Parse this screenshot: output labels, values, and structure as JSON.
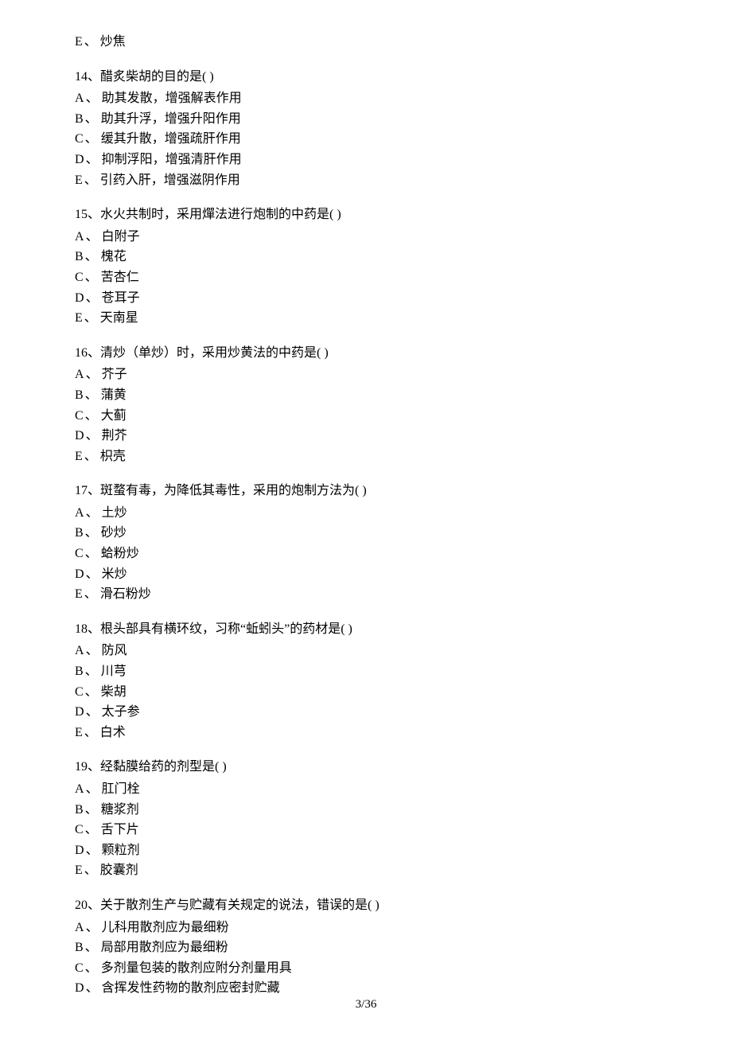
{
  "orphanOption": {
    "letter": "E",
    "sep": "、",
    "text": "炒焦"
  },
  "questions": [
    {
      "num": "14",
      "sep": "、",
      "stem": "醋炙柴胡的目的是( )",
      "options": [
        {
          "letter": "A",
          "sep": "、",
          "text": "助其发散，增强解表作用"
        },
        {
          "letter": "B",
          "sep": "、",
          "text": "助其升浮，增强升阳作用"
        },
        {
          "letter": "C",
          "sep": "、",
          "text": "缓其升散，增强疏肝作用"
        },
        {
          "letter": "D",
          "sep": "、",
          "text": "抑制浮阳，增强清肝作用"
        },
        {
          "letter": "E",
          "sep": "、",
          "text": "引药入肝，增强滋阴作用"
        }
      ]
    },
    {
      "num": "15",
      "sep": "、",
      "stem": "水火共制时，采用燀法进行炮制的中药是( )",
      "options": [
        {
          "letter": "A",
          "sep": "、",
          "text": "白附子"
        },
        {
          "letter": "B",
          "sep": "、",
          "text": "槐花"
        },
        {
          "letter": "C",
          "sep": "、",
          "text": "苦杏仁"
        },
        {
          "letter": "D",
          "sep": "、",
          "text": "苍耳子"
        },
        {
          "letter": "E",
          "sep": "、",
          "text": "天南星"
        }
      ]
    },
    {
      "num": "16",
      "sep": "、",
      "stem": "清炒（单炒）时，采用炒黄法的中药是( )",
      "options": [
        {
          "letter": "A",
          "sep": "、",
          "text": "芥子"
        },
        {
          "letter": "B",
          "sep": "、",
          "text": "蒲黄"
        },
        {
          "letter": "C",
          "sep": "、",
          "text": "大蓟"
        },
        {
          "letter": "D",
          "sep": "、",
          "text": "荆芥"
        },
        {
          "letter": "E",
          "sep": "、",
          "text": "枳壳"
        }
      ]
    },
    {
      "num": "17",
      "sep": "、",
      "stem": "斑蝥有毒，为降低其毒性，采用的炮制方法为( )",
      "options": [
        {
          "letter": "A",
          "sep": "、",
          "text": "土炒"
        },
        {
          "letter": "B",
          "sep": "、",
          "text": "砂炒"
        },
        {
          "letter": "C",
          "sep": "、",
          "text": "蛤粉炒"
        },
        {
          "letter": "D",
          "sep": "、",
          "text": "米炒"
        },
        {
          "letter": "E",
          "sep": "、",
          "text": "滑石粉炒"
        }
      ]
    },
    {
      "num": "18",
      "sep": "、",
      "stem": "根头部具有横环纹，习称“蚯蚓头”的药材是( )",
      "options": [
        {
          "letter": "A",
          "sep": "、",
          "text": "防风"
        },
        {
          "letter": "B",
          "sep": "、",
          "text": "川芎"
        },
        {
          "letter": "C",
          "sep": "、",
          "text": "柴胡"
        },
        {
          "letter": "D",
          "sep": "、",
          "text": "太子参"
        },
        {
          "letter": "E",
          "sep": "、",
          "text": "白术"
        }
      ]
    },
    {
      "num": "19",
      "sep": "、",
      "stem": "经黏膜给药的剂型是( )",
      "options": [
        {
          "letter": "A",
          "sep": "、",
          "text": "肛门栓"
        },
        {
          "letter": "B",
          "sep": "、",
          "text": "糖浆剂"
        },
        {
          "letter": "C",
          "sep": "、",
          "text": "舌下片"
        },
        {
          "letter": "D",
          "sep": "、",
          "text": "颗粒剂"
        },
        {
          "letter": "E",
          "sep": "、",
          "text": "胶囊剂"
        }
      ]
    },
    {
      "num": "20",
      "sep": "、",
      "stem": "关于散剂生产与贮藏有关规定的说法，错误的是( )",
      "options": [
        {
          "letter": "A",
          "sep": "、",
          "text": "儿科用散剂应为最细粉"
        },
        {
          "letter": "B",
          "sep": "、",
          "text": "局部用散剂应为最细粉"
        },
        {
          "letter": "C",
          "sep": "、",
          "text": "多剂量包装的散剂应附分剂量用具"
        },
        {
          "letter": "D",
          "sep": "、",
          "text": "含挥发性药物的散剂应密封贮藏"
        }
      ]
    }
  ],
  "footer": {
    "page": "3",
    "sep": "/",
    "total": "36"
  }
}
